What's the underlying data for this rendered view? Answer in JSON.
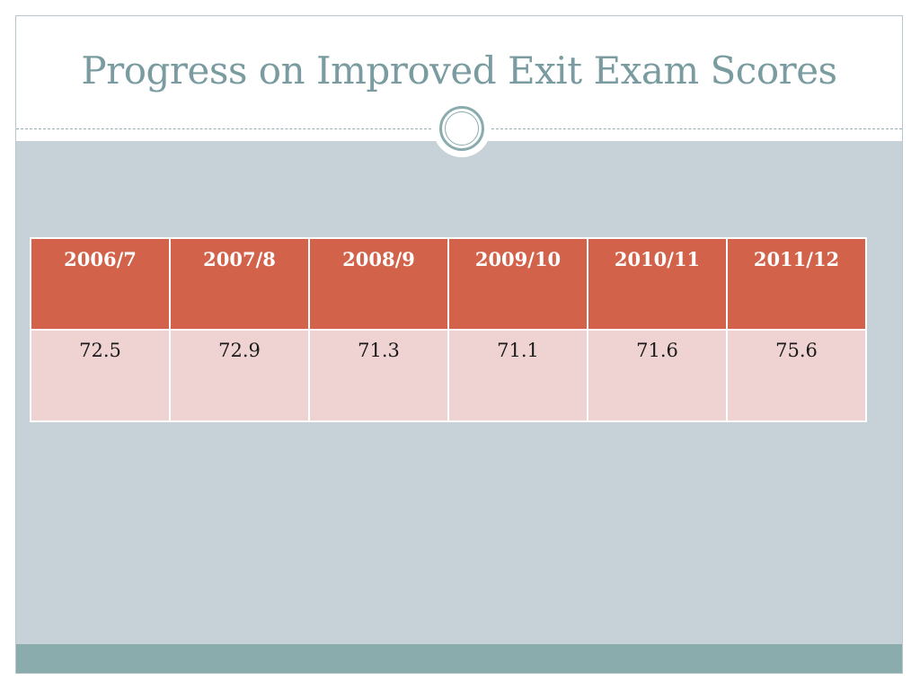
{
  "slide": {
    "title": "Progress on Improved Exit Exam Scores"
  },
  "table": {
    "headers": [
      "2006/7",
      "2007/8",
      "2008/9",
      "2009/10",
      "2010/11",
      "2011/12"
    ],
    "values": [
      "72.5",
      "72.9",
      "71.3",
      "71.1",
      "71.6",
      "75.6"
    ]
  },
  "colors": {
    "title": "#7a9ca0",
    "header_fill": "#d2624a",
    "row_fill": "#efd3d2",
    "content_bg": "#c6d2d8",
    "accent_bar": "#8aacad"
  }
}
